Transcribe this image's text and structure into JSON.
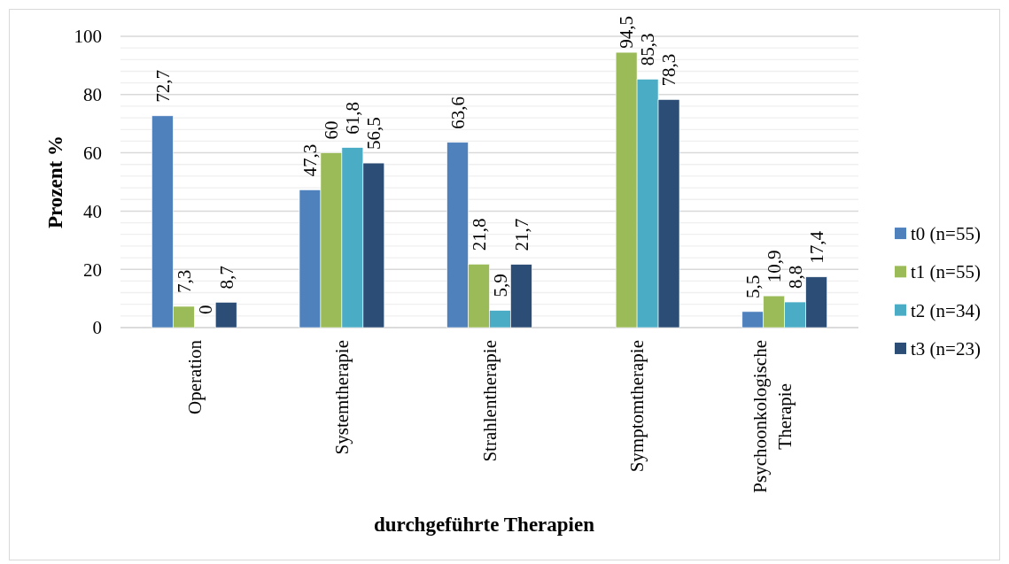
{
  "chart_data": {
    "type": "bar",
    "xlabel": "durchgeführte Therapien",
    "ylabel": "Prozent %",
    "categories": [
      "Operation",
      "Systemtherapie",
      "Strahlentherapie",
      "Symptomtherapie",
      "Psychoonkologische Therapie"
    ],
    "series": [
      {
        "name": "t0 (n=55)",
        "color": "#4f81bd",
        "values": [
          72.7,
          47.3,
          63.6,
          null,
          5.5
        ],
        "value_labels": [
          "72,7",
          "47,3",
          "63,6",
          null,
          "5,5"
        ]
      },
      {
        "name": "t1 (n=55)",
        "color": "#9bbb59",
        "values": [
          7.3,
          60,
          21.8,
          94.5,
          10.9
        ],
        "value_labels": [
          "7,3",
          "60",
          "21,8",
          "94,5",
          "10,9"
        ]
      },
      {
        "name": "t2 (n=34)",
        "color": "#4bacc6",
        "values": [
          0,
          61.8,
          5.9,
          85.3,
          8.8
        ],
        "value_labels": [
          "0",
          "61,8",
          "5,9",
          "85,3",
          "8,8"
        ]
      },
      {
        "name": "t3 (n=23)",
        "color": "#2c4d75",
        "values": [
          8.7,
          56.5,
          21.7,
          78.3,
          17.4
        ],
        "value_labels": [
          "8,7",
          "56,5",
          "21,7",
          "78,3",
          "17,4"
        ]
      }
    ],
    "ylim": [
      0,
      100
    ],
    "yticks": [
      0,
      {
        "value": 4,
        "label": null
      },
      {
        "value": 8,
        "label": null
      },
      {
        "value": 12,
        "label": null
      },
      {
        "value": 16,
        "label": null
      },
      20,
      {
        "value": 24,
        "label": null
      },
      {
        "value": 28,
        "label": null
      },
      {
        "value": 32,
        "label": null
      },
      {
        "value": 36,
        "label": null
      },
      40,
      {
        "value": 44,
        "label": null
      },
      {
        "value": 48,
        "label": null
      },
      {
        "value": 52,
        "label": null
      },
      {
        "value": 56,
        "label": null
      },
      60,
      {
        "value": 64,
        "label": null
      },
      {
        "value": 68,
        "label": null
      },
      {
        "value": 72,
        "label": null
      },
      {
        "value": 76,
        "label": null
      },
      80,
      {
        "value": 84,
        "label": null
      },
      {
        "value": 88,
        "label": null
      },
      {
        "value": 92,
        "label": null
      },
      {
        "value": 96,
        "label": null
      },
      100
    ],
    "grid": "y",
    "legend": "right"
  }
}
